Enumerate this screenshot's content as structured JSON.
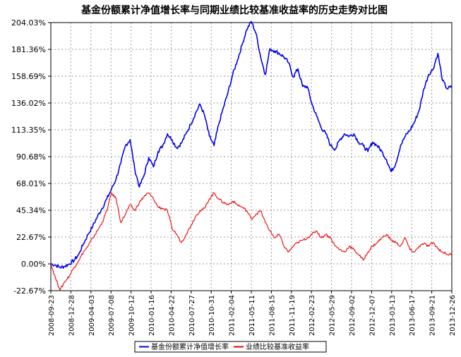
{
  "chart_data": {
    "type": "line",
    "title": "基金份额累计净值增长率与同期业绩比较基准收益率的历史走势对比图",
    "ylim": [
      -22.67,
      204.03
    ],
    "y_ticks": [
      "204.03%",
      "181.36%",
      "158.69%",
      "136.02%",
      "113.35%",
      "90.68%",
      "68.01%",
      "45.34%",
      "22.67%",
      "0.00%",
      "-22.67%"
    ],
    "y_tick_values": [
      204.03,
      181.36,
      158.69,
      136.02,
      113.35,
      90.68,
      68.01,
      45.34,
      22.67,
      0.0,
      -22.67
    ],
    "x_ticks": [
      "2008-09-23",
      "2008-12-28",
      "2009-04-03",
      "2009-07-08",
      "2009-10-12",
      "2010-01-16",
      "2010-04-22",
      "2010-07-27",
      "2010-10-31",
      "2011-02-04",
      "2011-05-11",
      "2011-08-15",
      "2011-11-19",
      "2012-02-23",
      "2012-05-29",
      "2012-09-02",
      "2012-12-07",
      "2013-03-13",
      "2013-06-17",
      "2013-09-21",
      "2013-12-26"
    ],
    "grid": true,
    "legend_position": "bottom",
    "series": [
      {
        "name": "基金份额累计净值增长率",
        "color": "#0000ee",
        "values": [
          0,
          -1,
          -3,
          -2,
          0,
          3,
          8,
          17,
          25,
          32,
          40,
          47,
          55,
          63,
          72,
          85,
          100,
          105,
          80,
          65,
          75,
          90,
          82,
          95,
          100,
          110,
          105,
          98,
          102,
          110,
          118,
          127,
          135,
          125,
          108,
          100,
          118,
          132,
          145,
          160,
          172,
          185,
          198,
          205,
          195,
          175,
          160,
          182,
          180,
          178,
          175,
          170,
          158,
          165,
          150,
          150,
          135,
          125,
          115,
          110,
          100,
          97,
          105,
          110,
          108,
          110,
          103,
          100,
          95,
          103,
          100,
          95,
          88,
          78,
          85,
          100,
          108,
          113,
          120,
          130,
          148,
          160,
          165,
          178,
          155,
          148,
          150
        ]
      },
      {
        "name": "业绩比较基准收益率",
        "color": "#ee0000",
        "values": [
          0,
          -12,
          -22,
          -15,
          -10,
          -3,
          3,
          10,
          15,
          22,
          28,
          35,
          45,
          60,
          55,
          35,
          42,
          50,
          45,
          52,
          57,
          60,
          55,
          48,
          47,
          45,
          30,
          25,
          18,
          25,
          32,
          40,
          45,
          47,
          55,
          60,
          55,
          52,
          50,
          53,
          50,
          48,
          45,
          38,
          42,
          45,
          35,
          28,
          22,
          25,
          15,
          10,
          15,
          18,
          20,
          22,
          25,
          28,
          22,
          25,
          22,
          15,
          12,
          10,
          15,
          12,
          8,
          3,
          10,
          15,
          18,
          22,
          25,
          20,
          18,
          15,
          22,
          12,
          10,
          15,
          17,
          15,
          18,
          13,
          10,
          8,
          8
        ]
      }
    ]
  }
}
